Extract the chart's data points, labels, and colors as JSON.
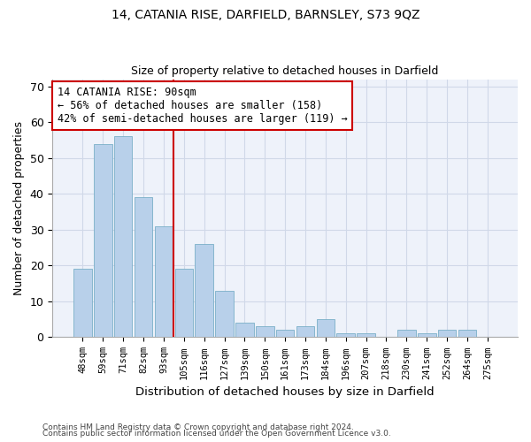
{
  "title1": "14, CATANIA RISE, DARFIELD, BARNSLEY, S73 9QZ",
  "title2": "Size of property relative to detached houses in Darfield",
  "xlabel": "Distribution of detached houses by size in Darfield",
  "ylabel": "Number of detached properties",
  "categories": [
    "48sqm",
    "59sqm",
    "71sqm",
    "82sqm",
    "93sqm",
    "105sqm",
    "116sqm",
    "127sqm",
    "139sqm",
    "150sqm",
    "161sqm",
    "173sqm",
    "184sqm",
    "196sqm",
    "207sqm",
    "218sqm",
    "230sqm",
    "241sqm",
    "252sqm",
    "264sqm",
    "275sqm"
  ],
  "values": [
    19,
    54,
    56,
    39,
    31,
    19,
    26,
    13,
    4,
    3,
    2,
    3,
    5,
    1,
    1,
    0,
    2,
    1,
    2,
    2,
    0
  ],
  "bar_color": "#b8d0ea",
  "bar_edge_color": "#7aafc8",
  "vline_index": 4,
  "vline_color": "#cc0000",
  "annotation_text": "14 CATANIA RISE: 90sqm\n← 56% of detached houses are smaller (158)\n42% of semi-detached houses are larger (119) →",
  "annotation_box_color": "#ffffff",
  "annotation_box_edge_color": "#cc0000",
  "ylim": [
    0,
    72
  ],
  "yticks": [
    0,
    10,
    20,
    30,
    40,
    50,
    60,
    70
  ],
  "grid_color": "#d0d8e8",
  "background_color": "#eef2fa",
  "footer1": "Contains HM Land Registry data © Crown copyright and database right 2024.",
  "footer2": "Contains public sector information licensed under the Open Government Licence v3.0."
}
